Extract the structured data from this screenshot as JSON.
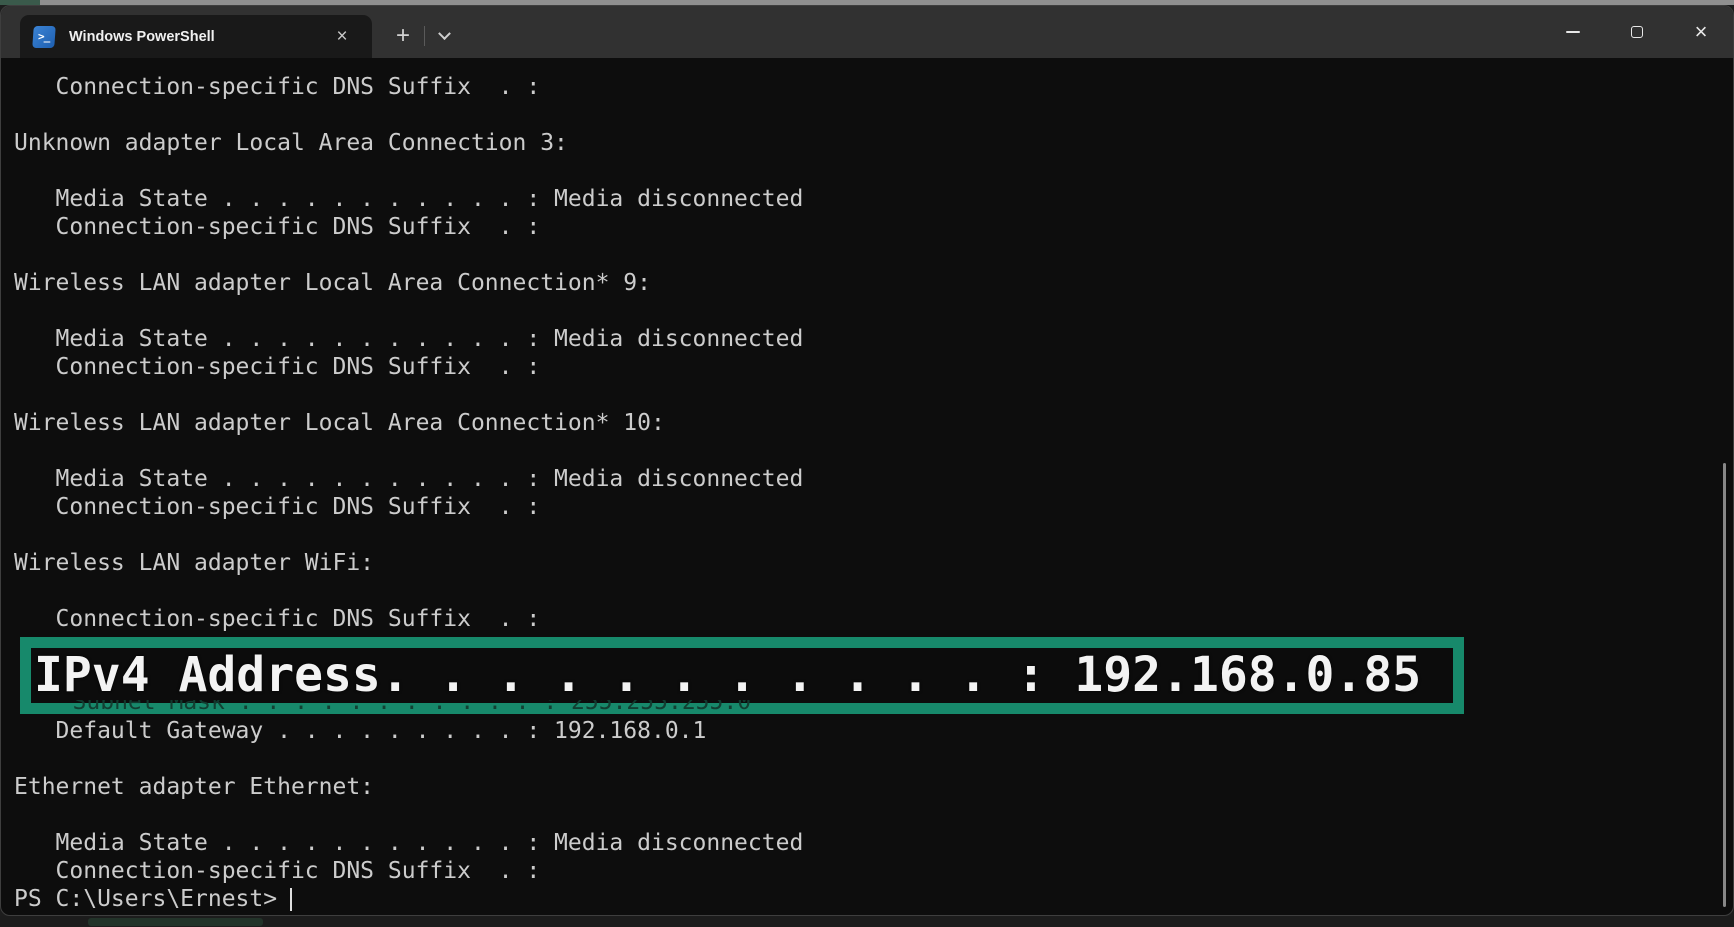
{
  "window": {
    "tab": {
      "icon_glyph": ">_",
      "title": "Windows PowerShell",
      "close_glyph": "×"
    },
    "new_tab_glyph": "+",
    "controls": {
      "close_glyph": "×"
    }
  },
  "colors": {
    "terminal_background": "#0c0c0c",
    "terminal_foreground": "#cccccc",
    "titlebar_background": "#313131",
    "tab_background": "#191919",
    "highlight_border": "#17896b",
    "powershell_icon_blue": "#2f77c9"
  },
  "terminal": {
    "lines": [
      "   Connection-specific DNS Suffix  . :",
      "",
      "Unknown adapter Local Area Connection 3:",
      "",
      "   Media State . . . . . . . . . . . : Media disconnected",
      "   Connection-specific DNS Suffix  . :",
      "",
      "Wireless LAN adapter Local Area Connection* 9:",
      "",
      "   Media State . . . . . . . . . . . : Media disconnected",
      "   Connection-specific DNS Suffix  . :",
      "",
      "Wireless LAN adapter Local Area Connection* 10:",
      "",
      "   Media State . . . . . . . . . . . : Media disconnected",
      "   Connection-specific DNS Suffix  . :",
      "",
      "Wireless LAN adapter WiFi:",
      "",
      "   Connection-specific DNS Suffix  . :",
      "",
      "",
      "",
      "   Default Gateway . . . . . . . . . : 192.168.0.1",
      "",
      "Ethernet adapter Ethernet:",
      "",
      "   Media State . . . . . . . . . . . : Media disconnected",
      "   Connection-specific DNS Suffix  . :"
    ],
    "prompt": "PS C:\\Users\\Ernest>"
  },
  "overlay": {
    "highlight_text": "IPv4 Address. . . . . . . . . . . : 192.168.0.85",
    "covered_line": "   Subnet Mask . . . . . . . . . . . : 255.255.255.0",
    "ipv4_address": "192.168.0.85"
  }
}
